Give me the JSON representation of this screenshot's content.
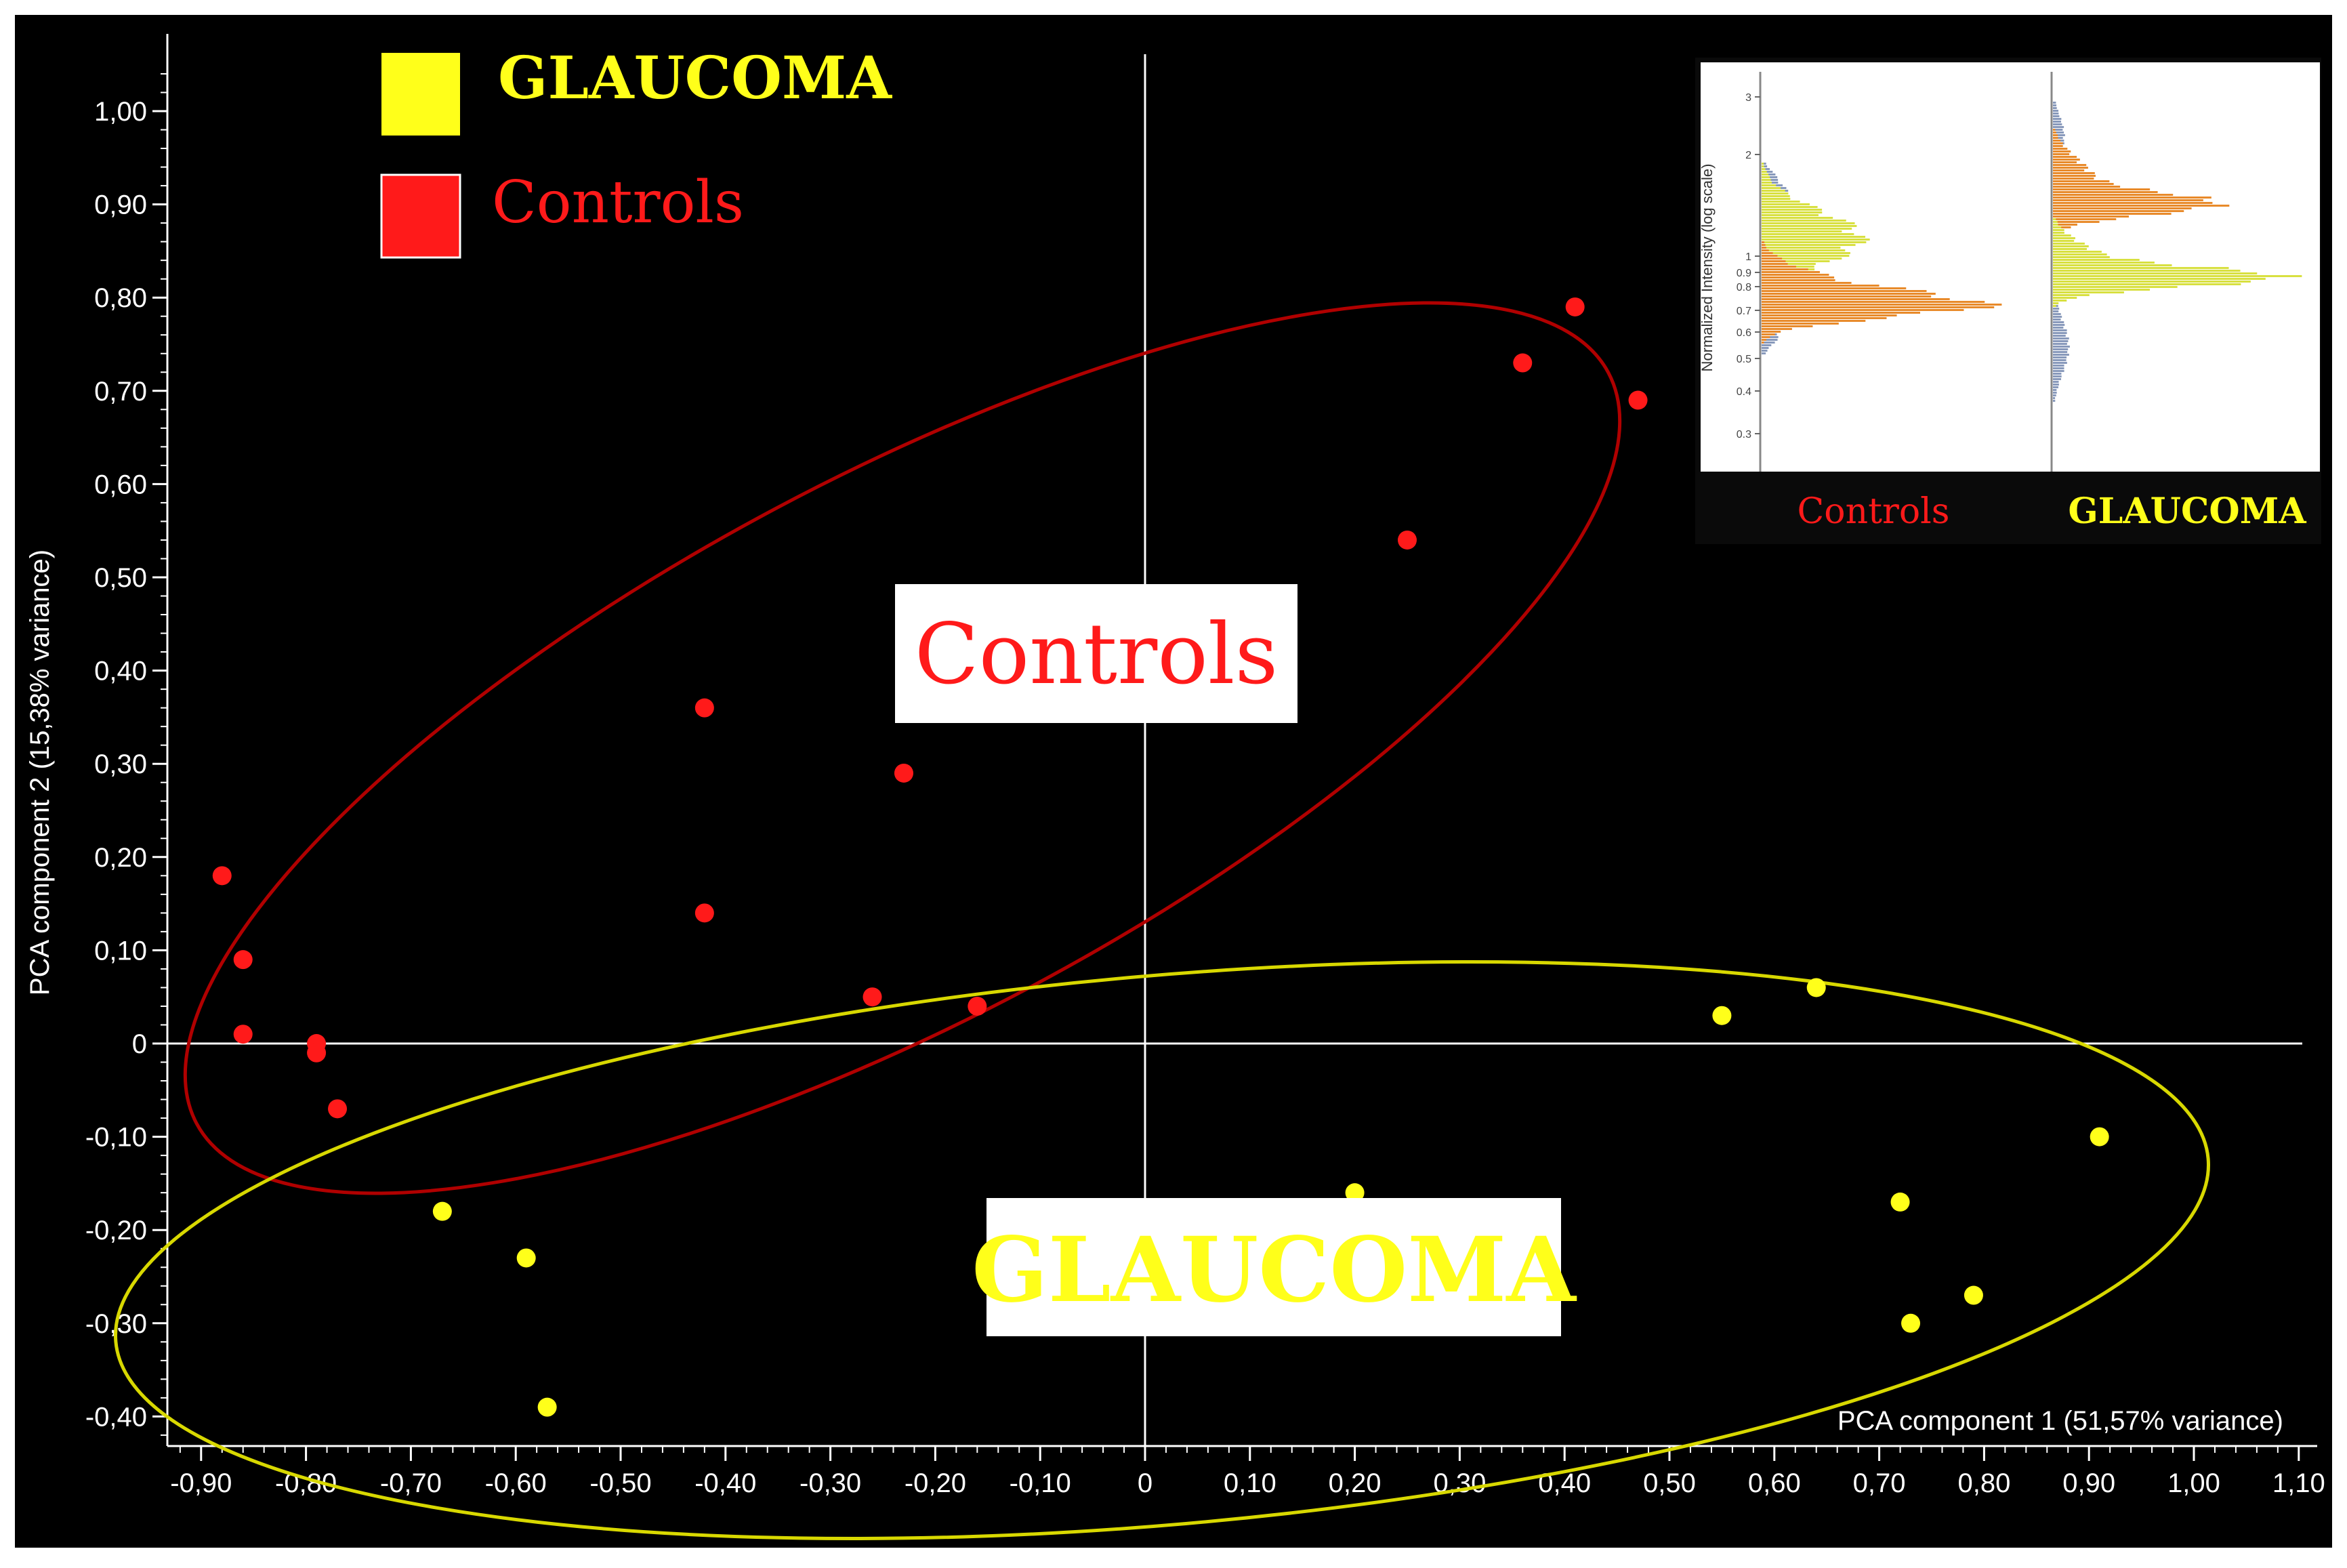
{
  "chart_data": {
    "type": "scatter",
    "xlabel": "PCA component 1 (51,57% variance)",
    "ylabel": "PCA component 2 (15,38% variance)",
    "xlim": [
      -0.93,
      1.1
    ],
    "ylim": [
      -0.43,
      1.07
    ],
    "x_ticks": [
      "-0,90",
      "-0,80",
      "-0,70",
      "-0,60",
      "-0,50",
      "-0,40",
      "-0,30",
      "-0,20",
      "-0,10",
      "0",
      "0,10",
      "0,20",
      "0,30",
      "0,40",
      "0,50",
      "0,60",
      "0,70",
      "0,80",
      "0,90",
      "1,00",
      "1,10"
    ],
    "x_tick_values": [
      -0.9,
      -0.8,
      -0.7,
      -0.6,
      -0.5,
      -0.4,
      -0.3,
      -0.2,
      -0.1,
      0,
      0.1,
      0.2,
      0.3,
      0.4,
      0.5,
      0.6,
      0.7,
      0.8,
      0.9,
      1.0,
      1.1
    ],
    "y_ticks": [
      "-0,40",
      "-0,30",
      "-0,20",
      "-0,10",
      "0",
      "0,10",
      "0,20",
      "0,30",
      "0,40",
      "0,50",
      "0,60",
      "0,70",
      "0,80",
      "0,90",
      "1,00"
    ],
    "y_tick_values": [
      -0.4,
      -0.3,
      -0.2,
      -0.1,
      0,
      0.1,
      0.2,
      0.3,
      0.4,
      0.5,
      0.6,
      0.7,
      0.8,
      0.9,
      1.0
    ],
    "legend": {
      "placement": "top-left",
      "entries": [
        "GLAUCOMA",
        "Controls"
      ]
    },
    "series": [
      {
        "name": "Controls",
        "color": "#ff1a1a",
        "points": [
          [
            0.41,
            0.79
          ],
          [
            0.36,
            0.73
          ],
          [
            0.47,
            0.69
          ],
          [
            0.25,
            0.54
          ],
          [
            -0.42,
            0.36
          ],
          [
            -0.23,
            0.29
          ],
          [
            -0.42,
            0.14
          ],
          [
            -0.88,
            0.18
          ],
          [
            -0.86,
            0.09
          ],
          [
            -0.86,
            0.01
          ],
          [
            -0.79,
            0.0
          ],
          [
            -0.79,
            -0.01
          ],
          [
            -0.77,
            -0.07
          ],
          [
            -0.26,
            0.05
          ],
          [
            -0.16,
            0.04
          ]
        ]
      },
      {
        "name": "GLAUCOMA",
        "color": "#ffff1a",
        "points": [
          [
            0.64,
            0.06
          ],
          [
            0.55,
            0.03
          ],
          [
            0.91,
            -0.1
          ],
          [
            0.72,
            -0.17
          ],
          [
            0.79,
            -0.27
          ],
          [
            0.73,
            -0.3
          ],
          [
            0.2,
            -0.16
          ],
          [
            -0.67,
            -0.18
          ],
          [
            -0.59,
            -0.23
          ],
          [
            -0.57,
            -0.39
          ]
        ]
      }
    ],
    "annotations": [
      "Controls",
      "GLAUCOMA"
    ],
    "colors": {
      "background": "#000000",
      "controls": "#ff1a1a",
      "glaucoma": "#ffff1a",
      "controls_ellipse": "#b00000",
      "glaucoma_ellipse": "#d8d800",
      "axes": "#ffffff"
    },
    "inset": {
      "type": "histogram",
      "ylabel": "Normalized Intensity (log scale)",
      "y_ticks": [
        "3",
        "2",
        "1",
        "0.9",
        "0.8",
        "0.7",
        "0.6",
        "0.5",
        "0.4",
        "0.3"
      ],
      "panel_labels": [
        "Controls",
        "GLAUCOMA"
      ]
    }
  }
}
